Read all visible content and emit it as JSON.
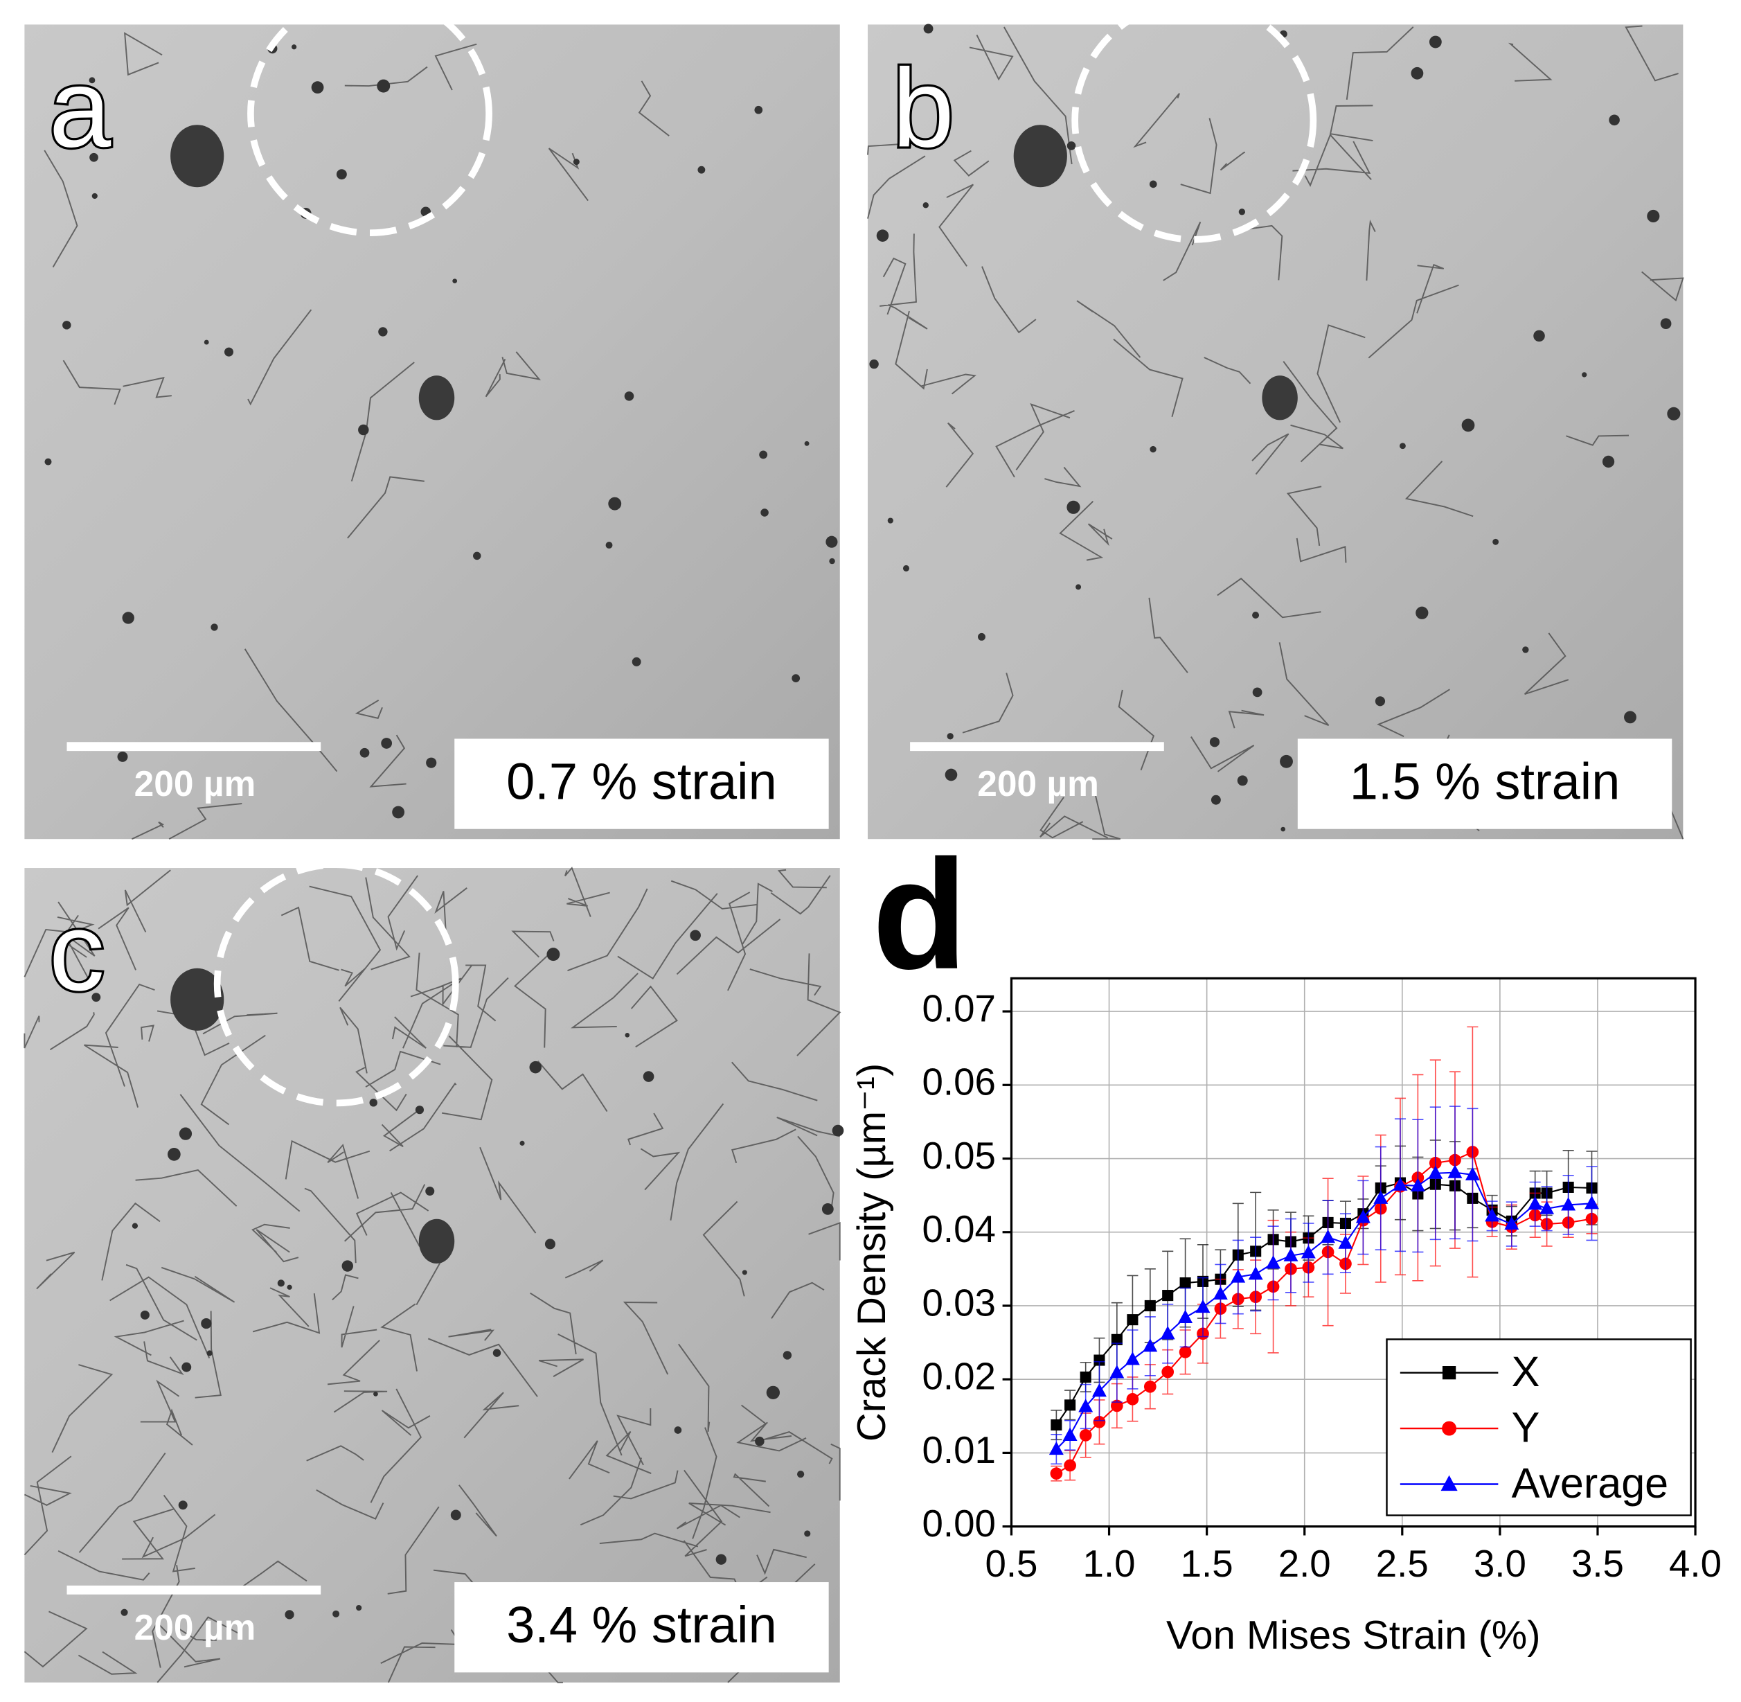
{
  "panels": [
    {
      "letter": "a",
      "scale_bar": "200 µm",
      "strain_label": "0.7 % strain"
    },
    {
      "letter": "b",
      "scale_bar": "200 µm",
      "strain_label": "1.5 % strain"
    },
    {
      "letter": "c",
      "scale_bar": "200 µm",
      "strain_label": "3.4 % strain"
    }
  ],
  "chart_data": {
    "type": "scatter",
    "panel_letter": "d",
    "x_label": "Von Mises Strain (%)",
    "y_label": "Crack Density (µm⁻¹)",
    "xlim": [
      0.5,
      4.0
    ],
    "ylim": [
      0,
      0.0745
    ],
    "xticks": [
      0.5,
      {
        "value": 1,
        "label": "1.0"
      },
      1.5,
      {
        "value": 2,
        "label": "2.0"
      },
      2.5,
      {
        "value": 3,
        "label": "3.0"
      },
      3.5,
      {
        "value": 4,
        "label": "4.0"
      }
    ],
    "yticks": [
      {
        "value": 0,
        "label": "0.00"
      },
      0.01,
      0.02,
      0.03,
      0.04,
      0.05,
      0.06,
      0.07
    ],
    "grid": true,
    "legend": "lower right",
    "x": [
      0.73,
      0.8,
      0.88,
      0.95,
      1.04,
      1.12,
      1.21,
      1.3,
      1.39,
      1.48,
      1.57,
      1.66,
      1.75,
      1.84,
      1.93,
      2.02,
      2.12,
      2.21,
      2.3,
      2.39,
      2.49,
      2.58,
      2.67,
      2.77,
      2.86,
      2.96,
      3.06,
      3.18,
      3.24,
      3.35,
      3.47
    ],
    "series": [
      {
        "name": "X",
        "color": "#000000",
        "marker": "square",
        "values": [
          0.0138,
          0.0165,
          0.0203,
          0.0226,
          0.0254,
          0.0281,
          0.03,
          0.0314,
          0.0331,
          0.0333,
          0.0336,
          0.0369,
          0.0374,
          0.039,
          0.0387,
          0.0392,
          0.0413,
          0.0412,
          0.0425,
          0.046,
          0.0467,
          0.0452,
          0.0465,
          0.0463,
          0.0446,
          0.043,
          0.0415,
          0.0453,
          0.0453,
          0.0461,
          0.046
        ],
        "errors": [
          0.002,
          0.002,
          0.002,
          0.003,
          0.005,
          0.006,
          0.005,
          0.006,
          0.006,
          0.005,
          0.004,
          0.007,
          0.008,
          0.004,
          0.004,
          0.003,
          0.003,
          0.003,
          0.002,
          0.003,
          0.005,
          0.005,
          0.006,
          0.006,
          0.004,
          0.002,
          0.002,
          0.003,
          0.003,
          0.005,
          0.005
        ]
      },
      {
        "name": "Y",
        "color": "#ff0000",
        "marker": "circle",
        "values": [
          0.0072,
          0.0083,
          0.0124,
          0.0142,
          0.0164,
          0.0173,
          0.019,
          0.021,
          0.0237,
          0.0262,
          0.0296,
          0.0309,
          0.0312,
          0.0326,
          0.035,
          0.0352,
          0.0373,
          0.0357,
          0.0416,
          0.0432,
          0.0462,
          0.0474,
          0.0494,
          0.0498,
          0.0509,
          0.0414,
          0.0407,
          0.0423,
          0.0411,
          0.0413,
          0.0418
        ],
        "errors": [
          0.001,
          0.002,
          0.003,
          0.003,
          0.003,
          0.003,
          0.003,
          0.003,
          0.003,
          0.004,
          0.004,
          0.004,
          0.005,
          0.009,
          0.005,
          0.004,
          0.01,
          0.004,
          0.006,
          0.01,
          0.012,
          0.014,
          0.014,
          0.012,
          0.017,
          0.002,
          0.003,
          0.003,
          0.003,
          0.002,
          0.002
        ]
      },
      {
        "name": "Average",
        "color": "#0000ff",
        "marker": "triangle",
        "values": [
          0.0105,
          0.0124,
          0.0163,
          0.0184,
          0.0209,
          0.0227,
          0.0245,
          0.0262,
          0.0284,
          0.0298,
          0.0316,
          0.0339,
          0.0343,
          0.0358,
          0.0368,
          0.0372,
          0.0393,
          0.0385,
          0.042,
          0.0446,
          0.0464,
          0.0463,
          0.048,
          0.0481,
          0.0478,
          0.0422,
          0.0411,
          0.0438,
          0.0432,
          0.0437,
          0.0439
        ],
        "errors": [
          0.002,
          0.002,
          0.003,
          0.004,
          0.004,
          0.004,
          0.004,
          0.004,
          0.004,
          0.004,
          0.004,
          0.005,
          0.005,
          0.005,
          0.005,
          0.004,
          0.005,
          0.004,
          0.005,
          0.007,
          0.009,
          0.009,
          0.009,
          0.009,
          0.009,
          0.002,
          0.003,
          0.003,
          0.003,
          0.004,
          0.005
        ]
      }
    ]
  }
}
